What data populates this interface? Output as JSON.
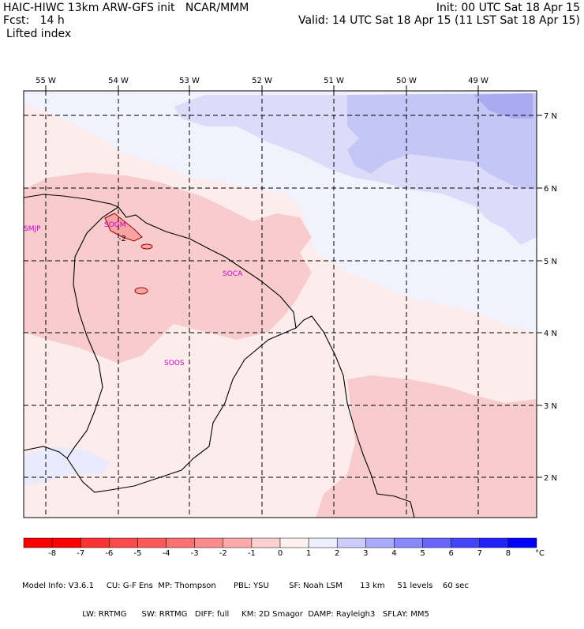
{
  "header": {
    "title_left": "HAIC-HIWC 13km ARW-GFS init   NCAR/MMM",
    "init": "Init: 00 UTC Sat 18 Apr 15",
    "fcst": "Fcst:   14 h",
    "valid": "Valid: 14 UTC Sat 18 Apr 15 (11 LST Sat 18 Apr 15)",
    "field": "Lifted index"
  },
  "map": {
    "lon_labels": [
      "55 W",
      "54 W",
      "53 W",
      "52 W",
      "51 W",
      "50 W",
      "49 W"
    ],
    "lat_labels": [
      "7 N",
      "6 N",
      "5 N",
      "4 N",
      "3 N",
      "2 N"
    ],
    "stations": [
      "SMJP",
      "SOGM",
      "SOCA",
      "SOOS"
    ],
    "contour_label": "-2"
  },
  "colorbar": {
    "ticks": [
      "-8",
      "-7",
      "-6",
      "-5",
      "-4",
      "-3",
      "-2",
      "-1",
      "0",
      "1",
      "2",
      "3",
      "4",
      "5",
      "6",
      "7",
      "8"
    ],
    "unit": "°C",
    "colors": [
      "#ff0000",
      "#ff3131",
      "#ff4a4a",
      "#ff5a5a",
      "#ff7070",
      "#ff8a8a",
      "#ffaaaa",
      "#ffd0d0",
      "#fff0f0",
      "#eeeeff",
      "#ccccff",
      "#aaaaff",
      "#8888ff",
      "#6666ff",
      "#4444ff",
      "#2222ff",
      "#0000ff"
    ]
  },
  "footer": {
    "line1": "Model Info: V3.6.1     CU: G-F Ens  MP: Thompson       PBL: YSU        SF: Noah LSM       13 km     51 levels    60 sec",
    "line2": "                        LW: RRTMG      SW: RRTMG   DIFF: full     KM: 2D Smagor  DAMP: Rayleigh3   SFLAY: MM5"
  },
  "colors": {
    "neg_light": "#fde9e9",
    "neg_mid": "#f8c9c9",
    "pos_light": "#eeeefc",
    "pos_mid": "#d6d8f8",
    "pos_strong": "#b5b8f2",
    "station": "#cc00cc"
  }
}
